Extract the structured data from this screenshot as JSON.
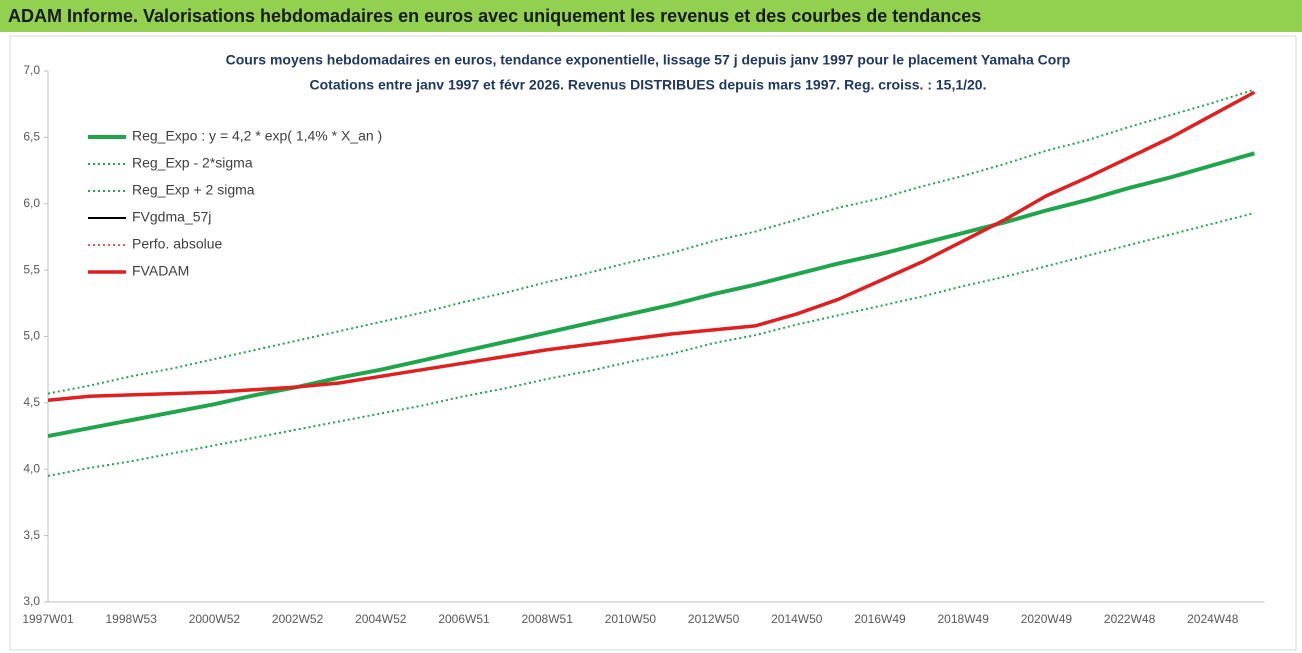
{
  "header": {
    "title": "ADAM Informe. Valorisations hebdomadaires en euros avec uniquement les revenus et des courbes de tendances"
  },
  "chart_data": {
    "type": "line",
    "title": "Cours moyens hebdomadaires en euros, tendance exponentielle, lissage 57 j depuis janv 1997 pour le placement Yamaha Corp",
    "subtitle": "Cotations entre janv 1997 et févr 2026. Revenus DISTRIBUES depuis mars 1997. Reg. croiss. : 15,1/20.",
    "categories": [
      "1997W01",
      null,
      "1998W53",
      null,
      "2000W52",
      null,
      "2002W52",
      null,
      "2004W52",
      null,
      "2006W51",
      null,
      "2008W51",
      null,
      "2010W50",
      null,
      "2012W50",
      null,
      "2014W50",
      null,
      "2016W49",
      null,
      "2018W49",
      null,
      "2020W49",
      null,
      "2022W48",
      null,
      "2024W48",
      null
    ],
    "ylim": [
      3,
      7
    ],
    "yticks": [
      {
        "value": 3,
        "label": "3,0"
      },
      {
        "value": 3.5,
        "label": "3,5"
      },
      {
        "value": 4,
        "label": "4,0"
      },
      {
        "value": 4.5,
        "label": "4,5"
      },
      {
        "value": 5,
        "label": "5,0"
      },
      {
        "value": 5.5,
        "label": "5,5"
      },
      {
        "value": 6,
        "label": "6,0"
      },
      {
        "value": 6.5,
        "label": "6,5"
      },
      {
        "value": 7,
        "label": "7,0"
      }
    ],
    "grid": false,
    "legend": "upper left",
    "series": [
      {
        "name": "Reg_Expo : y = 4,2 * exp( 1,4% *  X_an )",
        "color": "#1fa64a",
        "dash": "solid",
        "width": 4,
        "values": [
          4.25,
          4.31,
          4.37,
          4.43,
          4.49,
          4.56,
          4.62,
          4.69,
          4.75,
          4.82,
          4.89,
          4.96,
          5.03,
          5.1,
          5.17,
          5.24,
          5.32,
          5.39,
          5.47,
          5.55,
          5.62,
          5.7,
          5.78,
          5.86,
          5.95,
          6.03,
          6.12,
          6.2,
          6.29,
          6.38
        ]
      },
      {
        "name": "Reg_Exp - 2*sigma",
        "color": "#1fa64a",
        "dash": "dotted",
        "width": 2,
        "values": [
          3.95,
          4.01,
          4.06,
          4.12,
          4.18,
          4.24,
          4.3,
          4.36,
          4.42,
          4.48,
          4.55,
          4.61,
          4.68,
          4.74,
          4.81,
          4.87,
          4.95,
          5.01,
          5.09,
          5.16,
          5.23,
          5.3,
          5.38,
          5.45,
          5.53,
          5.61,
          5.69,
          5.77,
          5.85,
          5.93
        ]
      },
      {
        "name": "Reg_Exp + 2 sigma",
        "color": "#1fa64a",
        "dash": "dotted",
        "width": 2,
        "values": [
          4.57,
          4.63,
          4.7,
          4.76,
          4.83,
          4.9,
          4.97,
          5.04,
          5.11,
          5.18,
          5.26,
          5.33,
          5.41,
          5.48,
          5.56,
          5.63,
          5.72,
          5.79,
          5.88,
          5.97,
          6.04,
          6.13,
          6.21,
          6.3,
          6.4,
          6.48,
          6.58,
          6.67,
          6.76,
          6.86
        ]
      },
      {
        "name": "FVgdma_57j",
        "color": "#000000",
        "dash": "solid",
        "width": 2,
        "values": [
          4.52,
          4.55,
          4.56,
          4.57,
          4.58,
          4.6,
          4.62,
          4.65,
          4.7,
          4.75,
          4.8,
          4.85,
          4.9,
          4.94,
          4.98,
          5.02,
          5.05,
          5.08,
          5.17,
          5.28,
          5.42,
          5.56,
          5.72,
          5.88,
          6.06,
          6.2,
          6.35,
          6.5,
          6.67,
          6.84
        ]
      },
      {
        "name": "Perfo. absolue",
        "color": "#e02020",
        "dash": "dotted",
        "width": 1.5,
        "values": [
          4.52,
          4.55,
          4.56,
          4.57,
          4.58,
          4.6,
          4.62,
          4.65,
          4.7,
          4.75,
          4.8,
          4.85,
          4.9,
          4.94,
          4.98,
          5.02,
          5.05,
          5.08,
          5.17,
          5.28,
          5.42,
          5.56,
          5.72,
          5.88,
          6.06,
          6.2,
          6.35,
          6.5,
          6.67,
          6.84
        ]
      },
      {
        "name": "FVADAM",
        "color": "#e02020",
        "dash": "solid",
        "width": 3.5,
        "values": [
          4.52,
          4.55,
          4.56,
          4.57,
          4.58,
          4.6,
          4.62,
          4.65,
          4.7,
          4.75,
          4.8,
          4.85,
          4.9,
          4.94,
          4.98,
          5.02,
          5.05,
          5.08,
          5.17,
          5.28,
          5.42,
          5.56,
          5.72,
          5.88,
          6.06,
          6.2,
          6.35,
          6.5,
          6.67,
          6.84
        ]
      }
    ]
  }
}
